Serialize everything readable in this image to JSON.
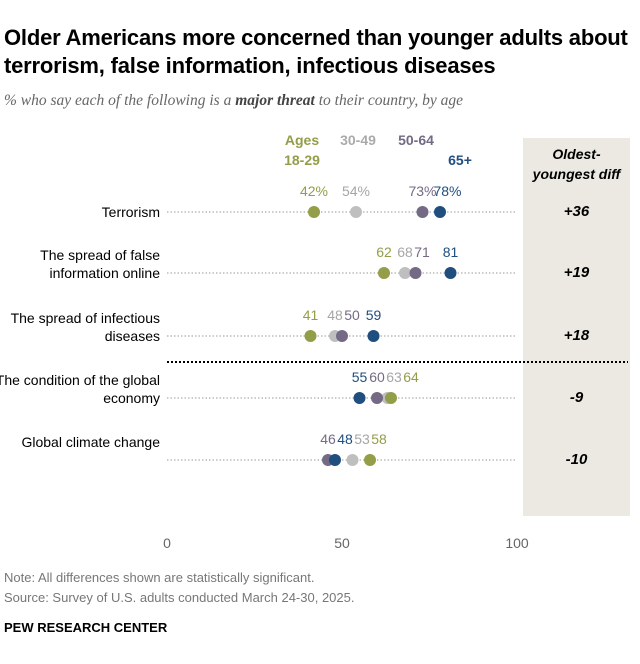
{
  "title": "Older Americans more concerned than younger adults about terrorism, false information, infectious diseases",
  "subtitle_pre": "% who say each of the following is a ",
  "subtitle_bold": "major threat",
  "subtitle_post": " to their country, by age",
  "diff_header": "Oldest-youngest diff",
  "note": "Note: All differences shown are statistically significant.",
  "source": "Source: Survey of U.S. adults conducted March 24-30, 2025.",
  "brand": "PEW RESEARCH CENTER",
  "chart_data": {
    "type": "dot",
    "xlim": [
      0,
      100
    ],
    "xticks": [
      "0",
      "50",
      "100"
    ],
    "series": [
      {
        "name": "Ages 18-29",
        "color": "#949d48"
      },
      {
        "name": "30-49",
        "color": "#bfbfbf"
      },
      {
        "name": "50-64",
        "color": "#746a85"
      },
      {
        "name": "65+",
        "color": "#1f4e7f"
      }
    ],
    "label_colors": [
      "#949d48",
      "#a6a6a6",
      "#746a85",
      "#1f4e7f"
    ],
    "rows": [
      {
        "label": "Terrorism",
        "values": [
          42,
          54,
          73,
          78
        ],
        "show_pct": true,
        "diff": "+36"
      },
      {
        "label": "The spread of false information online",
        "values": [
          62,
          68,
          71,
          81
        ],
        "diff": "+19"
      },
      {
        "label": "The spread of infectious diseases",
        "values": [
          41,
          48,
          50,
          59
        ],
        "diff": "+18"
      },
      {
        "label": "The condition of the global economy",
        "values": [
          64,
          63,
          60,
          55
        ],
        "diff": "-9"
      },
      {
        "label": "Global climate change",
        "values": [
          58,
          53,
          46,
          48
        ],
        "diff": "-10"
      }
    ]
  }
}
